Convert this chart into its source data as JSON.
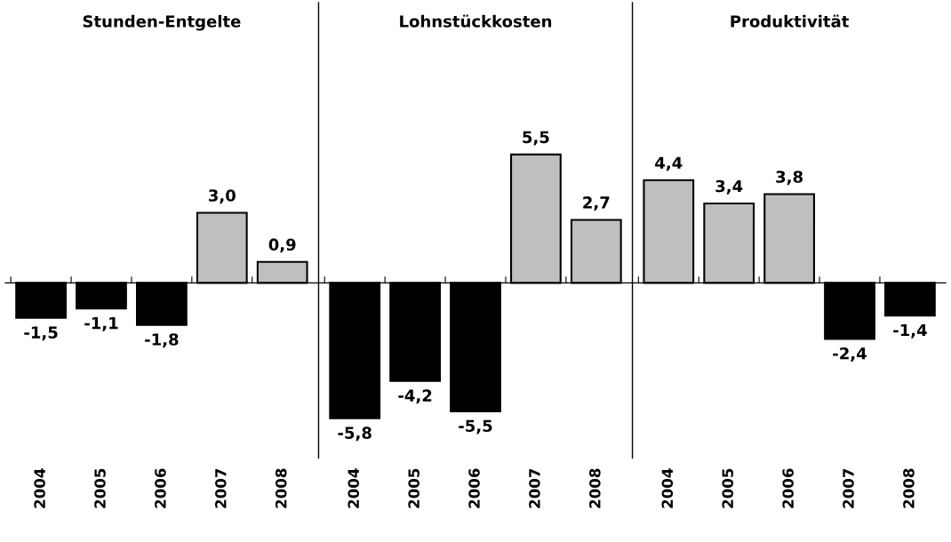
{
  "chart_data": [
    {
      "type": "bar",
      "title": "Stunden-Entgelte",
      "categories": [
        "2004",
        "2005",
        "2006",
        "2007",
        "2008"
      ],
      "values": [
        -1.5,
        -1.1,
        -1.8,
        3.0,
        0.9
      ],
      "colors": [
        "#000000",
        "#000000",
        "#000000",
        "#bfbfbf",
        "#bfbfbf"
      ],
      "value_labels": [
        "-1,5",
        "-1,1",
        "-1,8",
        "3,0",
        "0,9"
      ],
      "ylim": [
        -7.5,
        12
      ],
      "tick_labels": "x",
      "grid": false,
      "legend": false
    },
    {
      "type": "bar",
      "title": "Lohnstückkosten",
      "categories": [
        "2004",
        "2005",
        "2006",
        "2007",
        "2008"
      ],
      "values": [
        -5.8,
        -4.2,
        -5.5,
        5.5,
        2.7
      ],
      "colors": [
        "#000000",
        "#000000",
        "#000000",
        "#bfbfbf",
        "#bfbfbf"
      ],
      "value_labels": [
        "-5,8",
        "-4,2",
        "-5,5",
        "5,5",
        "2,7"
      ],
      "ylim": [
        -7.5,
        12
      ],
      "tick_labels": "x",
      "grid": false,
      "legend": false
    },
    {
      "type": "bar",
      "title": "Produktivität",
      "categories": [
        "2004",
        "2005",
        "2006",
        "2007",
        "2008"
      ],
      "values": [
        4.4,
        3.4,
        3.8,
        -2.4,
        -1.4
      ],
      "colors": [
        "#bfbfbf",
        "#bfbfbf",
        "#bfbfbf",
        "#000000",
        "#000000"
      ],
      "value_labels": [
        "4,4",
        "3,4",
        "3,8",
        "-2,4",
        "-1,4"
      ],
      "ylim": [
        -7.5,
        12
      ],
      "tick_labels": "x",
      "grid": false,
      "legend": false
    }
  ]
}
